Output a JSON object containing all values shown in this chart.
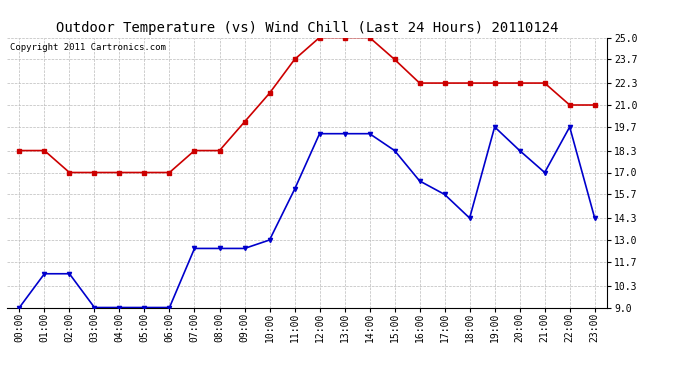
{
  "title": "Outdoor Temperature (vs) Wind Chill (Last 24 Hours) 20110124",
  "copyright": "Copyright 2011 Cartronics.com",
  "x_labels": [
    "00:00",
    "01:00",
    "02:00",
    "03:00",
    "04:00",
    "05:00",
    "06:00",
    "07:00",
    "08:00",
    "09:00",
    "10:00",
    "11:00",
    "12:00",
    "13:00",
    "14:00",
    "15:00",
    "16:00",
    "17:00",
    "18:00",
    "19:00",
    "20:00",
    "21:00",
    "22:00",
    "23:00"
  ],
  "temp_red": [
    18.3,
    18.3,
    17.0,
    17.0,
    17.0,
    17.0,
    17.0,
    18.3,
    18.3,
    20.0,
    21.7,
    23.7,
    25.0,
    25.0,
    25.0,
    23.7,
    22.3,
    22.3,
    22.3,
    22.3,
    22.3,
    22.3,
    21.0,
    21.0
  ],
  "wind_chill_blue": [
    9.0,
    11.0,
    11.0,
    9.0,
    9.0,
    9.0,
    9.0,
    12.5,
    12.5,
    12.5,
    13.0,
    16.0,
    19.3,
    19.3,
    19.3,
    18.3,
    16.5,
    15.7,
    14.3,
    19.7,
    18.3,
    17.0,
    19.7,
    14.3
  ],
  "red_color": "#cc0000",
  "blue_color": "#0000cc",
  "background_color": "#ffffff",
  "grid_color": "#bbbbbb",
  "ylim_min": 9.0,
  "ylim_max": 25.0,
  "yticks": [
    9.0,
    10.3,
    11.7,
    13.0,
    14.3,
    15.7,
    17.0,
    18.3,
    19.7,
    21.0,
    22.3,
    23.7,
    25.0
  ],
  "title_fontsize": 10,
  "copyright_fontsize": 6.5,
  "tick_fontsize": 7,
  "marker_size": 3,
  "line_width": 1.2
}
